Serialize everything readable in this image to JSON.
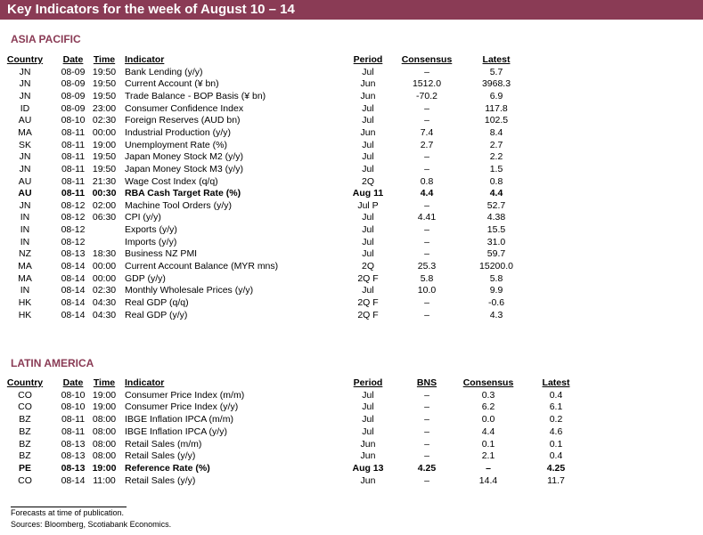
{
  "header": {
    "title": "Key Indicators for the week of August 10 – 14"
  },
  "sections": [
    {
      "title": "ASIA PACIFIC",
      "columns": [
        "Country",
        "Date",
        "Time",
        "Indicator",
        "Period",
        "Consensus",
        "Latest"
      ],
      "bold_rows": [
        10
      ],
      "rows": [
        [
          "JN",
          "08-09",
          "19:50",
          "Bank Lending (y/y)",
          "Jul",
          "–",
          "5.7"
        ],
        [
          "JN",
          "08-09",
          "19:50",
          "Current Account (¥ bn)",
          "Jun",
          "1512.0",
          "3968.3"
        ],
        [
          "JN",
          "08-09",
          "19:50",
          "Trade Balance - BOP Basis (¥ bn)",
          "Jun",
          "-70.2",
          "6.9"
        ],
        [
          "ID",
          "08-09",
          "23:00",
          "Consumer Confidence Index",
          "Jul",
          "–",
          "117.8"
        ],
        [
          "AU",
          "08-10",
          "02:30",
          "Foreign Reserves (AUD bn)",
          "Jul",
          "–",
          "102.5"
        ],
        [
          "MA",
          "08-11",
          "00:00",
          "Industrial Production (y/y)",
          "Jun",
          "7.4",
          "8.4"
        ],
        [
          "SK",
          "08-11",
          "19:00",
          "Unemployment Rate (%)",
          "Jul",
          "2.7",
          "2.7"
        ],
        [
          "JN",
          "08-11",
          "19:50",
          "Japan Money Stock M2 (y/y)",
          "Jul",
          "–",
          "2.2"
        ],
        [
          "JN",
          "08-11",
          "19:50",
          "Japan Money Stock M3 (y/y)",
          "Jul",
          "–",
          "1.5"
        ],
        [
          "AU",
          "08-11",
          "21:30",
          "Wage Cost Index (q/q)",
          "2Q",
          "0.8",
          "0.8"
        ],
        [
          "AU",
          "08-11",
          "00:30",
          "RBA Cash Target Rate (%)",
          "Aug 11",
          "4.4",
          "4.4"
        ],
        [
          "JN",
          "08-12",
          "02:00",
          "Machine Tool Orders (y/y)",
          "Jul P",
          "–",
          "52.7"
        ],
        [
          "IN",
          "08-12",
          "06:30",
          "CPI (y/y)",
          "Jul",
          "4.41",
          "4.38"
        ],
        [
          "IN",
          "08-12",
          null,
          "Exports (y/y)",
          "Jul",
          "–",
          "15.5"
        ],
        [
          "IN",
          "08-12",
          null,
          "Imports (y/y)",
          "Jul",
          "–",
          "31.0"
        ],
        [
          "NZ",
          "08-13",
          "18:30",
          "Business NZ PMI",
          "Jul",
          "–",
          "59.7"
        ],
        [
          "MA",
          "08-14",
          "00:00",
          "Current Account Balance (MYR mns)",
          "2Q",
          "25.3",
          "15200.0"
        ],
        [
          "MA",
          "08-14",
          "00:00",
          "GDP (y/y)",
          "2Q F",
          "5.8",
          "5.8"
        ],
        [
          "IN",
          "08-14",
          "02:30",
          "Monthly Wholesale Prices (y/y)",
          "Jul",
          "10.0",
          "9.9"
        ],
        [
          "HK",
          "08-14",
          "04:30",
          "Real GDP (q/q)",
          "2Q F",
          "–",
          "-0.6"
        ],
        [
          "HK",
          "08-14",
          "04:30",
          "Real GDP (y/y)",
          "2Q F",
          "–",
          "4.3"
        ]
      ]
    },
    {
      "title": "LATIN AMERICA",
      "columns": [
        "Country",
        "Date",
        "Time",
        "Indicator",
        "Period",
        "BNS",
        "Consensus",
        "Latest"
      ],
      "bold_rows": [
        6
      ],
      "rows": [
        [
          "CO",
          "08-10",
          "19:00",
          "Consumer Price Index (m/m)",
          "Jul",
          "–",
          "0.3",
          "0.4"
        ],
        [
          "CO",
          "08-10",
          "19:00",
          "Consumer Price Index (y/y)",
          "Jul",
          "–",
          "6.2",
          "6.1"
        ],
        [
          "BZ",
          "08-11",
          "08:00",
          "IBGE Inflation IPCA (m/m)",
          "Jul",
          "–",
          "0.0",
          "0.2"
        ],
        [
          "BZ",
          "08-11",
          "08:00",
          "IBGE Inflation IPCA (y/y)",
          "Jul",
          "–",
          "4.4",
          "4.6"
        ],
        [
          "BZ",
          "08-13",
          "08:00",
          "Retail Sales (m/m)",
          "Jun",
          "–",
          "0.1",
          "0.1"
        ],
        [
          "BZ",
          "08-13",
          "08:00",
          "Retail Sales (y/y)",
          "Jun",
          "–",
          "2.1",
          "0.4"
        ],
        [
          "PE",
          "08-13",
          "19:00",
          "Reference Rate (%)",
          "Aug 13",
          "4.25",
          "–",
          "4.25"
        ],
        [
          "CO",
          "08-14",
          "11:00",
          "Retail Sales (y/y)",
          "Jun",
          "–",
          "14.4",
          "11.7"
        ]
      ]
    }
  ],
  "footer": [
    "Forecasts at time of publication.",
    "Sources: Bloomberg, Scotiabank Economics."
  ]
}
